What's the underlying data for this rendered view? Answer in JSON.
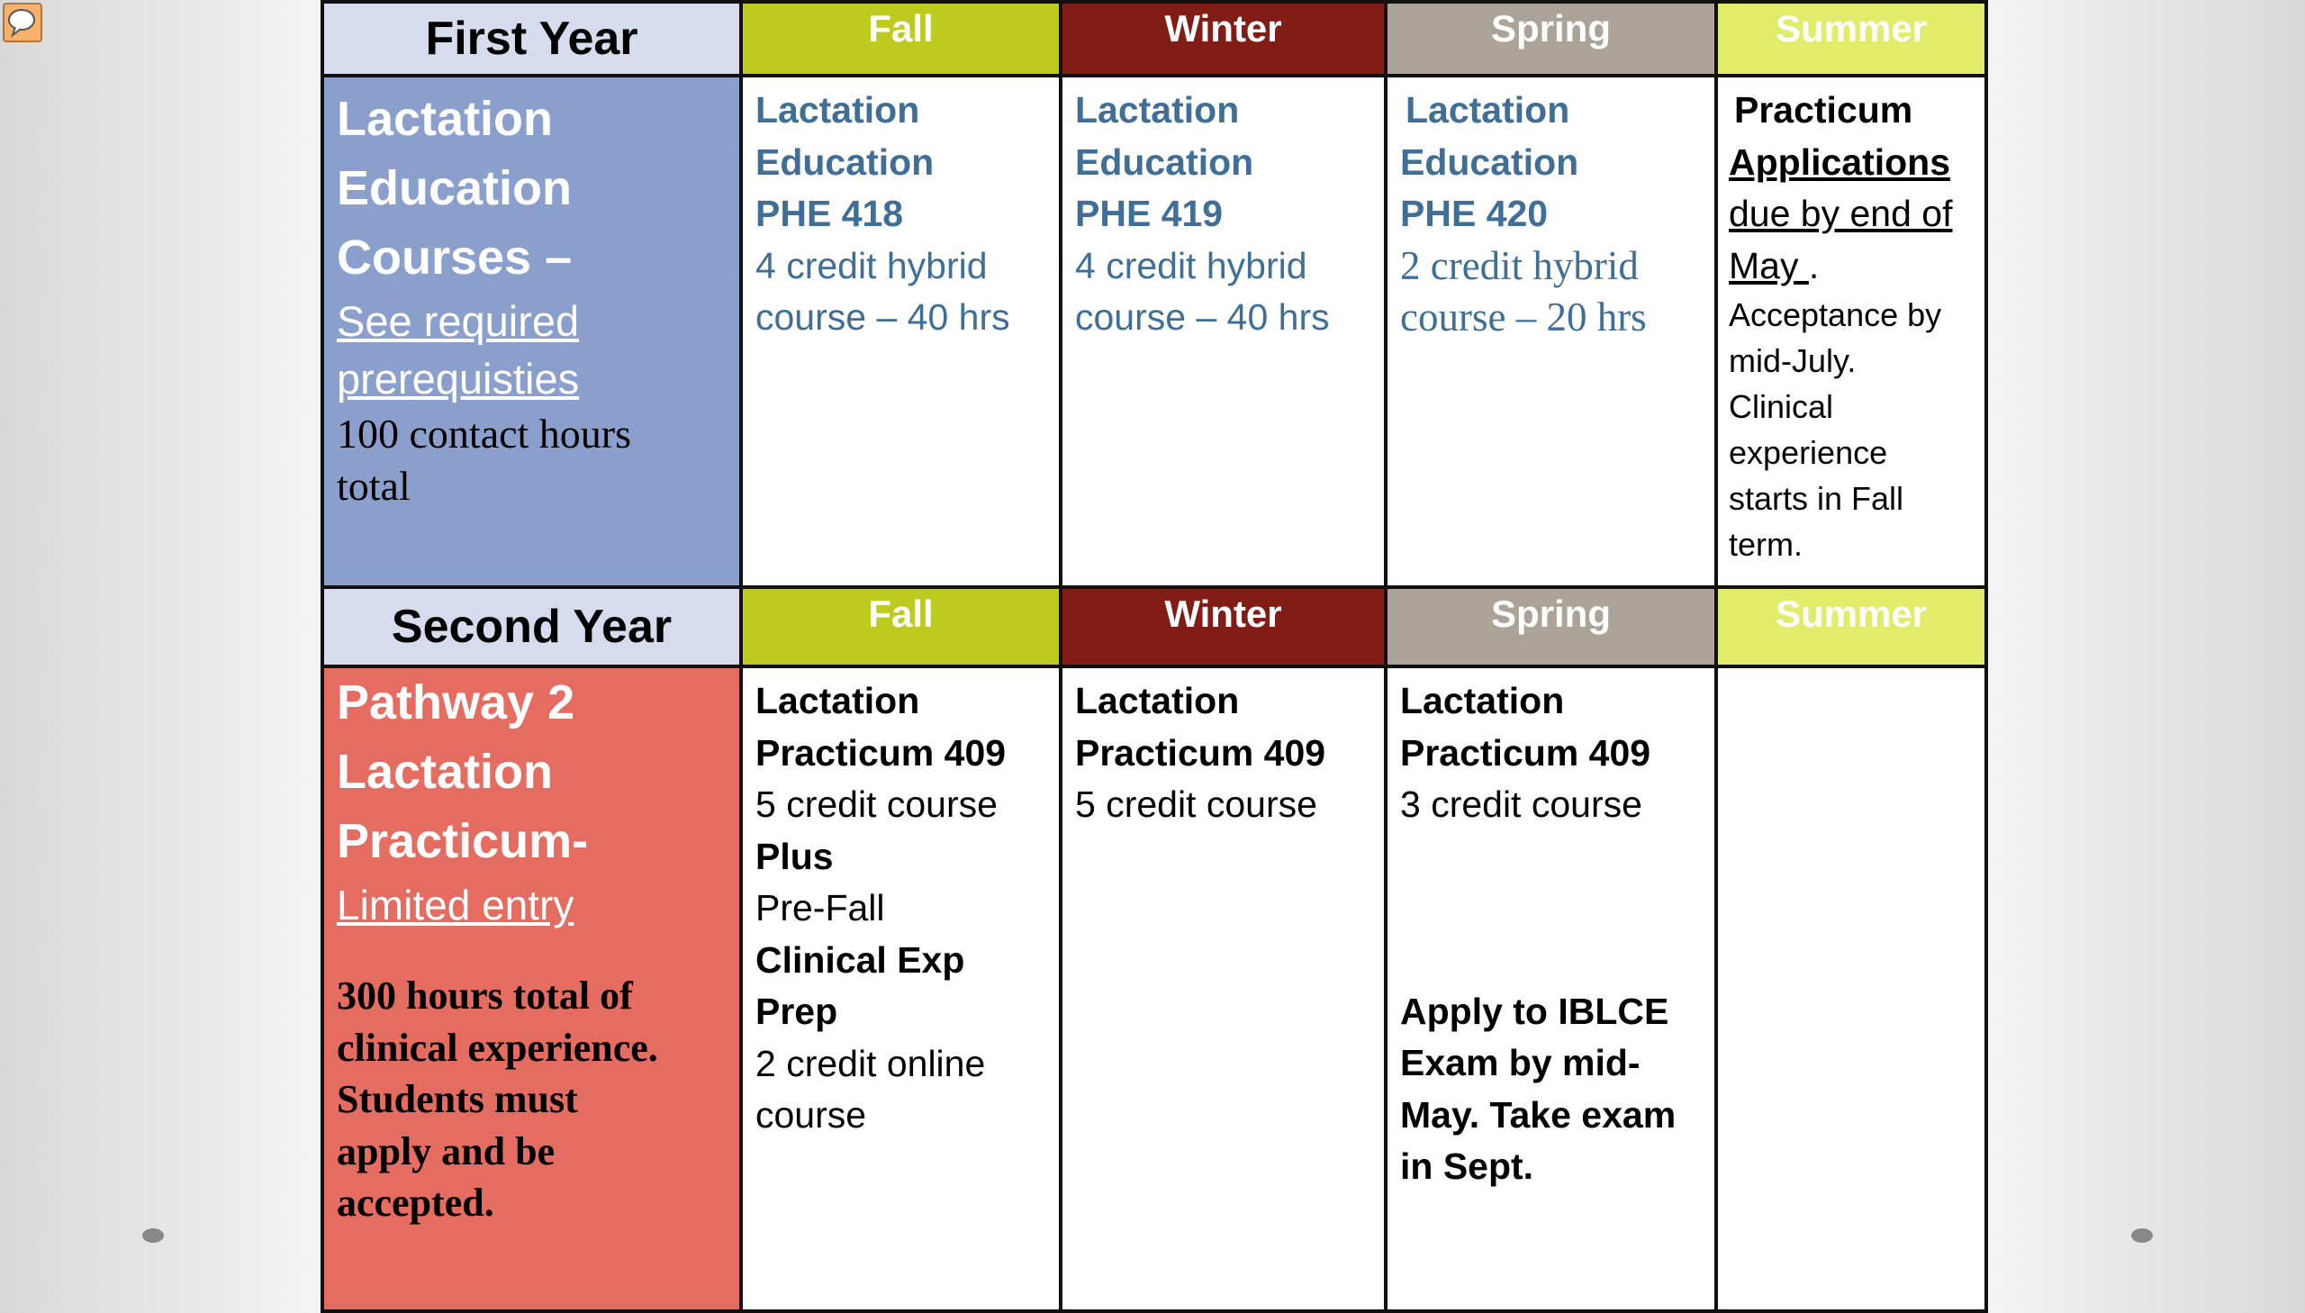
{
  "colors": {
    "fall": "#bccb1e",
    "winter": "#821c17",
    "spring": "#aba397",
    "summer": "#e0ec6a",
    "year1_side": "#8a9fcc",
    "year2_side": "#e46c60",
    "course_blue": "#3f6e96"
  },
  "icons": {
    "comment": "comment-icon",
    "nav_prev": "dot-icon",
    "nav_next": "dot-icon"
  },
  "year1": {
    "title": "First Year",
    "terms": [
      "Fall",
      "Winter",
      "Spring",
      "Summer"
    ],
    "side": {
      "l1": "Lactation",
      "l2": "Education",
      "l3": "Courses –",
      "link1": "See required",
      "link2": "prerequisties",
      "l4": "100 contact hours",
      "l5": "total"
    },
    "fall": {
      "l1": "Lactation",
      "l2": "Education",
      "l3": "PHE 418",
      "l4": "4 credit hybrid",
      "l5": "course – 40 hrs"
    },
    "winter": {
      "l1": "Lactation",
      "l2": "Education",
      "l3": "PHE 419",
      "l4": "4 credit hybrid",
      "l5": "course – 40 hrs"
    },
    "spring": {
      "l1": "Lactation",
      "l2": "Education",
      "l3": "PHE 420",
      "l4": "2 credit hybrid",
      "l5": "course – 20 hrs"
    },
    "summer": {
      "l1": "Practicum",
      "l2": "Applications",
      "l3": "due by end of",
      "l4": "May ",
      "l4b": ".",
      "l5": "Acceptance by",
      "l6": "mid-July.",
      "l7": "Clinical",
      "l8": "experience",
      "l9": "starts in Fall",
      "l10": "term."
    }
  },
  "year2": {
    "title": "Second Year",
    "terms": [
      "Fall",
      "Winter",
      "Spring",
      "Summer"
    ],
    "side": {
      "l1": "Pathway 2",
      "l2": "Lactation",
      "l3": "Practicum-",
      "link": "Limited entry",
      "l4": "300 hours total of",
      "l5": "clinical experience.",
      "l6": "Students must",
      "l7": "apply and be",
      "l8": "accepted."
    },
    "fall": {
      "l1": "Lactation",
      "l2": "Practicum 409",
      "l3": "5 credit course",
      "l4": "Plus",
      "l5": "Pre-Fall",
      "l6": "Clinical Exp",
      "l7": "Prep",
      "l8": "2 credit online",
      "l9": "course"
    },
    "winter": {
      "l1": "Lactation",
      "l2": "Practicum 409",
      "l3": "5 credit course"
    },
    "spring": {
      "l1": "Lactation",
      "l2": "Practicum 409",
      "l3": "3 credit course",
      "l4": "Apply to IBLCE",
      "l5": "Exam by mid-",
      "l6": "May.  Take exam",
      "l7": "in Sept."
    }
  }
}
